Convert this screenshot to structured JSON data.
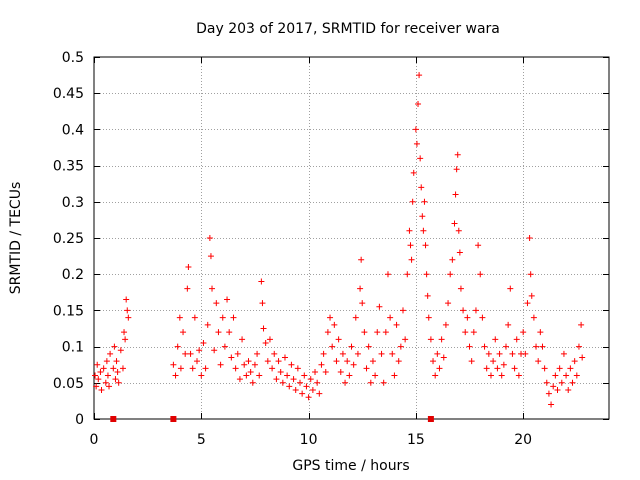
{
  "chart_data": {
    "type": "scatter",
    "title": "Day 203 of 2017, SRMTID for receiver wara",
    "xlabel": "GPS time / hours",
    "ylabel": "SRMTID / TECUs",
    "xlim": [
      0,
      24.0
    ],
    "ylim": [
      0,
      0.5
    ],
    "xticks": [
      0,
      5,
      10,
      15,
      20
    ],
    "xtick_labels": [
      "0",
      "5",
      "10",
      "15",
      "20"
    ],
    "yticks": [
      0,
      0.05,
      0.1,
      0.15,
      0.2,
      0.25,
      0.3,
      0.35,
      0.4,
      0.45,
      0.5
    ],
    "ytick_labels": [
      "0",
      "0.05",
      "0.1",
      "0.15",
      "0.2",
      "0.25",
      "0.3",
      "0.35",
      "0.4",
      "0.45",
      "0.5"
    ],
    "grid": true,
    "series": [
      {
        "name": "SRMTID",
        "marker": "plus",
        "color": "#ff0000",
        "points": [
          [
            0.05,
            0.06
          ],
          [
            0.1,
            0.045
          ],
          [
            0.15,
            0.075
          ],
          [
            0.2,
            0.055
          ],
          [
            0.3,
            0.065
          ],
          [
            0.35,
            0.04
          ],
          [
            0.45,
            0.07
          ],
          [
            0.55,
            0.05
          ],
          [
            0.6,
            0.08
          ],
          [
            0.65,
            0.06
          ],
          [
            0.7,
            0.045
          ],
          [
            0.75,
            0.09
          ],
          [
            0.9,
            0.07
          ],
          [
            0.95,
            0.1
          ],
          [
            1.0,
            0.055
          ],
          [
            1.05,
            0.08
          ],
          [
            1.1,
            0.065
          ],
          [
            1.15,
            0.05
          ],
          [
            1.25,
            0.095
          ],
          [
            1.35,
            0.07
          ],
          [
            1.4,
            0.12
          ],
          [
            1.45,
            0.11
          ],
          [
            1.5,
            0.165
          ],
          [
            1.55,
            0.15
          ],
          [
            1.6,
            0.14
          ],
          [
            3.7,
            0.075
          ],
          [
            3.8,
            0.06
          ],
          [
            3.9,
            0.1
          ],
          [
            4.0,
            0.14
          ],
          [
            4.05,
            0.07
          ],
          [
            4.15,
            0.12
          ],
          [
            4.25,
            0.09
          ],
          [
            4.35,
            0.18
          ],
          [
            4.4,
            0.21
          ],
          [
            4.5,
            0.09
          ],
          [
            4.6,
            0.07
          ],
          [
            4.7,
            0.14
          ],
          [
            4.8,
            0.08
          ],
          [
            4.9,
            0.095
          ],
          [
            5.0,
            0.06
          ],
          [
            5.1,
            0.105
          ],
          [
            5.2,
            0.07
          ],
          [
            5.3,
            0.13
          ],
          [
            5.4,
            0.25
          ],
          [
            5.45,
            0.225
          ],
          [
            5.5,
            0.18
          ],
          [
            5.6,
            0.095
          ],
          [
            5.7,
            0.16
          ],
          [
            5.8,
            0.12
          ],
          [
            5.9,
            0.075
          ],
          [
            6.0,
            0.14
          ],
          [
            6.1,
            0.1
          ],
          [
            6.2,
            0.165
          ],
          [
            6.3,
            0.12
          ],
          [
            6.4,
            0.085
          ],
          [
            6.5,
            0.14
          ],
          [
            6.6,
            0.07
          ],
          [
            6.7,
            0.09
          ],
          [
            6.8,
            0.055
          ],
          [
            6.9,
            0.11
          ],
          [
            7.0,
            0.075
          ],
          [
            7.1,
            0.06
          ],
          [
            7.2,
            0.08
          ],
          [
            7.3,
            0.065
          ],
          [
            7.4,
            0.05
          ],
          [
            7.5,
            0.075
          ],
          [
            7.6,
            0.09
          ],
          [
            7.7,
            0.06
          ],
          [
            7.8,
            0.19
          ],
          [
            7.85,
            0.16
          ],
          [
            7.9,
            0.125
          ],
          [
            8.0,
            0.105
          ],
          [
            8.1,
            0.08
          ],
          [
            8.2,
            0.11
          ],
          [
            8.3,
            0.07
          ],
          [
            8.4,
            0.09
          ],
          [
            8.5,
            0.055
          ],
          [
            8.6,
            0.08
          ],
          [
            8.7,
            0.065
          ],
          [
            8.8,
            0.05
          ],
          [
            8.9,
            0.085
          ],
          [
            9.0,
            0.06
          ],
          [
            9.1,
            0.045
          ],
          [
            9.2,
            0.075
          ],
          [
            9.3,
            0.055
          ],
          [
            9.4,
            0.04
          ],
          [
            9.5,
            0.07
          ],
          [
            9.6,
            0.05
          ],
          [
            9.7,
            0.035
          ],
          [
            9.8,
            0.06
          ],
          [
            9.9,
            0.045
          ],
          [
            10.0,
            0.03
          ],
          [
            10.1,
            0.055
          ],
          [
            10.2,
            0.04
          ],
          [
            10.3,
            0.065
          ],
          [
            10.4,
            0.05
          ],
          [
            10.5,
            0.035
          ],
          [
            10.6,
            0.075
          ],
          [
            10.7,
            0.09
          ],
          [
            10.8,
            0.065
          ],
          [
            10.9,
            0.12
          ],
          [
            11.0,
            0.14
          ],
          [
            11.1,
            0.1
          ],
          [
            11.2,
            0.13
          ],
          [
            11.3,
            0.08
          ],
          [
            11.4,
            0.11
          ],
          [
            11.5,
            0.065
          ],
          [
            11.6,
            0.09
          ],
          [
            11.7,
            0.05
          ],
          [
            11.8,
            0.08
          ],
          [
            11.9,
            0.06
          ],
          [
            12.0,
            0.1
          ],
          [
            12.1,
            0.075
          ],
          [
            12.2,
            0.14
          ],
          [
            12.3,
            0.09
          ],
          [
            12.4,
            0.18
          ],
          [
            12.45,
            0.22
          ],
          [
            12.5,
            0.16
          ],
          [
            12.6,
            0.12
          ],
          [
            12.7,
            0.07
          ],
          [
            12.8,
            0.1
          ],
          [
            12.9,
            0.05
          ],
          [
            13.0,
            0.08
          ],
          [
            13.1,
            0.06
          ],
          [
            13.2,
            0.12
          ],
          [
            13.3,
            0.155
          ],
          [
            13.4,
            0.09
          ],
          [
            13.5,
            0.05
          ],
          [
            13.6,
            0.12
          ],
          [
            13.7,
            0.2
          ],
          [
            13.8,
            0.14
          ],
          [
            13.9,
            0.09
          ],
          [
            14.0,
            0.06
          ],
          [
            14.1,
            0.13
          ],
          [
            14.2,
            0.08
          ],
          [
            14.3,
            0.1
          ],
          [
            14.4,
            0.15
          ],
          [
            14.5,
            0.11
          ],
          [
            14.6,
            0.2
          ],
          [
            14.7,
            0.26
          ],
          [
            14.75,
            0.24
          ],
          [
            14.8,
            0.22
          ],
          [
            14.85,
            0.3
          ],
          [
            14.9,
            0.34
          ],
          [
            15.0,
            0.4
          ],
          [
            15.05,
            0.38
          ],
          [
            15.1,
            0.435
          ],
          [
            15.15,
            0.475
          ],
          [
            15.2,
            0.36
          ],
          [
            15.25,
            0.32
          ],
          [
            15.3,
            0.28
          ],
          [
            15.35,
            0.26
          ],
          [
            15.4,
            0.3
          ],
          [
            15.45,
            0.24
          ],
          [
            15.5,
            0.2
          ],
          [
            15.55,
            0.17
          ],
          [
            15.6,
            0.14
          ],
          [
            15.7,
            0.11
          ],
          [
            15.8,
            0.08
          ],
          [
            15.9,
            0.06
          ],
          [
            16.0,
            0.09
          ],
          [
            16.1,
            0.07
          ],
          [
            16.2,
            0.11
          ],
          [
            16.3,
            0.085
          ],
          [
            16.4,
            0.13
          ],
          [
            16.5,
            0.16
          ],
          [
            16.6,
            0.2
          ],
          [
            16.7,
            0.22
          ],
          [
            16.8,
            0.27
          ],
          [
            16.85,
            0.31
          ],
          [
            16.9,
            0.345
          ],
          [
            16.95,
            0.365
          ],
          [
            17.0,
            0.26
          ],
          [
            17.05,
            0.23
          ],
          [
            17.1,
            0.18
          ],
          [
            17.2,
            0.15
          ],
          [
            17.3,
            0.12
          ],
          [
            17.4,
            0.14
          ],
          [
            17.5,
            0.1
          ],
          [
            17.6,
            0.08
          ],
          [
            17.7,
            0.12
          ],
          [
            17.8,
            0.15
          ],
          [
            17.9,
            0.24
          ],
          [
            18.0,
            0.2
          ],
          [
            18.1,
            0.14
          ],
          [
            18.2,
            0.1
          ],
          [
            18.3,
            0.07
          ],
          [
            18.4,
            0.09
          ],
          [
            18.5,
            0.06
          ],
          [
            18.6,
            0.08
          ],
          [
            18.7,
            0.11
          ],
          [
            18.8,
            0.07
          ],
          [
            18.9,
            0.09
          ],
          [
            19.0,
            0.06
          ],
          [
            19.1,
            0.075
          ],
          [
            19.2,
            0.1
          ],
          [
            19.3,
            0.13
          ],
          [
            19.4,
            0.18
          ],
          [
            19.5,
            0.09
          ],
          [
            19.6,
            0.07
          ],
          [
            19.7,
            0.11
          ],
          [
            19.8,
            0.06
          ],
          [
            19.9,
            0.09
          ],
          [
            20.0,
            0.12
          ],
          [
            20.1,
            0.09
          ],
          [
            20.2,
            0.16
          ],
          [
            20.3,
            0.25
          ],
          [
            20.35,
            0.2
          ],
          [
            20.4,
            0.17
          ],
          [
            20.5,
            0.14
          ],
          [
            20.6,
            0.1
          ],
          [
            20.7,
            0.08
          ],
          [
            20.8,
            0.12
          ],
          [
            20.9,
            0.1
          ],
          [
            21.0,
            0.07
          ],
          [
            21.1,
            0.05
          ],
          [
            21.2,
            0.035
          ],
          [
            21.3,
            0.02
          ],
          [
            21.4,
            0.045
          ],
          [
            21.5,
            0.06
          ],
          [
            21.6,
            0.04
          ],
          [
            21.7,
            0.07
          ],
          [
            21.8,
            0.05
          ],
          [
            21.9,
            0.09
          ],
          [
            22.0,
            0.06
          ],
          [
            22.1,
            0.04
          ],
          [
            22.2,
            0.07
          ],
          [
            22.3,
            0.05
          ],
          [
            22.4,
            0.08
          ],
          [
            22.5,
            0.06
          ],
          [
            22.6,
            0.1
          ],
          [
            22.7,
            0.13
          ],
          [
            22.75,
            0.085
          ]
        ]
      }
    ],
    "gap_markers_x": [
      0.9,
      3.7,
      15.7
    ]
  }
}
